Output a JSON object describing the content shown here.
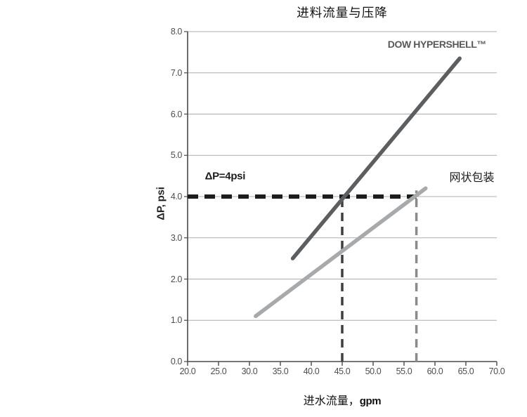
{
  "page": {
    "background": "#ffffff"
  },
  "chart_data": {
    "type": "line",
    "title": "进料流量与压降",
    "xlabel": "进水流量，gpm",
    "xlabel_text": "进水流量，",
    "xlabel_unit": "gpm",
    "ylabel": "ΔP, psi",
    "xlim": [
      20,
      70
    ],
    "ylim": [
      0,
      8
    ],
    "x_ticks": [
      20,
      25,
      30,
      35,
      40,
      45,
      50,
      55,
      60,
      65,
      70
    ],
    "x_tick_labels": [
      "20.0",
      "25.0",
      "30.0",
      "35.0",
      "40.0",
      "45.0",
      "50.0",
      "55.0",
      "60.0",
      "65.0",
      "70.0"
    ],
    "y_ticks": [
      0,
      1,
      2,
      3,
      4,
      5,
      6,
      7,
      8
    ],
    "y_tick_labels": [
      "0.0",
      "1.0",
      "2.0",
      "3.0",
      "4.0",
      "5.0",
      "6.0",
      "7.0",
      "8.0"
    ],
    "grid": true,
    "legend_position": "none",
    "colors": {
      "grid": "#adadad",
      "axis": "#4a4a4a",
      "tick_label": "#4d4d4d"
    },
    "series": [
      {
        "id": "dow-hypershell",
        "name": "DOW HYPERSHELL™",
        "color": "#5d5e60",
        "width": 5.5,
        "points": [
          [
            37,
            2.5
          ],
          [
            64,
            7.35
          ]
        ]
      },
      {
        "id": "mesh-wrap",
        "name": "网状包装",
        "color": "#a7a9ab",
        "width": 5.5,
        "points": [
          [
            31,
            1.1
          ],
          [
            58.5,
            4.2
          ]
        ]
      }
    ],
    "reference_lines": [
      {
        "id": "dp-4psi-line",
        "label": "ΔP=4psi",
        "orientation": "horizontal",
        "y": 4,
        "x_start": 20,
        "x_end": 57,
        "color": "#1c1c1c",
        "width": 6,
        "dash": [
          15,
          9
        ]
      },
      {
        "id": "hypershell-4psi-crossing",
        "orientation": "vertical",
        "x": 45,
        "y_start": 0,
        "y_end": 4,
        "color": "#3f3f3f",
        "width": 3.5,
        "dash": [
          12,
          8
        ]
      },
      {
        "id": "mesh-wrap-4psi-crossing",
        "orientation": "vertical",
        "x": 57,
        "y_start": 0,
        "y_end": 4.15,
        "color": "#8a8a8a",
        "width": 3.5,
        "dash": [
          12,
          8
        ]
      }
    ],
    "annotations": [
      {
        "id": "dp-4psi-label",
        "text": "ΔP=4psi",
        "x": 22.8,
        "y": 4.5,
        "align": "left",
        "style": "bold-sans"
      },
      {
        "id": "dow-hypershell-label",
        "text": "DOW HYPERSHELL™",
        "x": 68.3,
        "y": 7.7,
        "align": "right",
        "style": "brand"
      },
      {
        "id": "mesh-wrap-label",
        "text": "网状包装",
        "x": 69.6,
        "y": 4.5,
        "align": "right",
        "style": "serif"
      }
    ]
  }
}
